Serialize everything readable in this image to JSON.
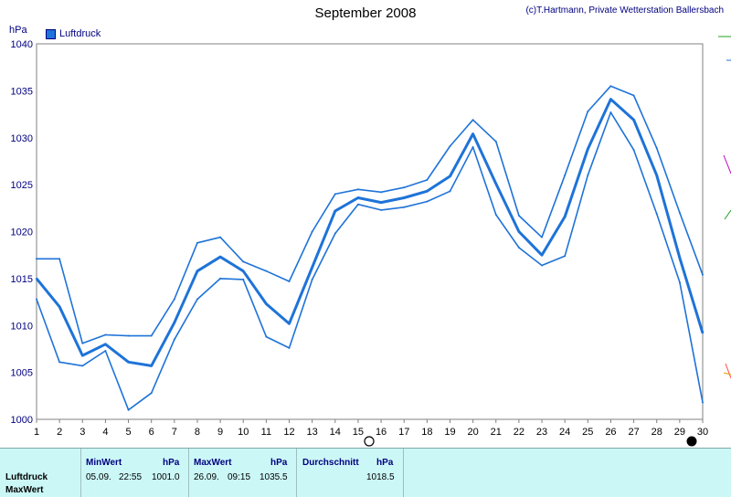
{
  "title": "September 2008",
  "credit": "(c)T.Hartmann, Private Wetterstation Ballersbach",
  "ylabel": "hPa",
  "chart_data": {
    "type": "line",
    "title": "September 2008",
    "ylabel": "hPa",
    "xlabel": "",
    "ylim": [
      1000,
      1040
    ],
    "yticks": [
      1000,
      1005,
      1010,
      1015,
      1020,
      1025,
      1030,
      1035,
      1040
    ],
    "x": [
      1,
      2,
      3,
      4,
      5,
      6,
      7,
      8,
      9,
      10,
      11,
      12,
      13,
      14,
      15,
      16,
      17,
      18,
      19,
      20,
      21,
      22,
      23,
      24,
      25,
      26,
      27,
      28,
      29,
      30
    ],
    "grid": true,
    "legend_position": "top-left",
    "series": [
      {
        "name": "Luftdruck",
        "role": "mean",
        "values": [
          1015,
          1012,
          1006.8,
          1008,
          1006.1,
          1005.7,
          1010.3,
          1015.8,
          1017.3,
          1015.8,
          1012.3,
          1010.2,
          1016.2,
          1022.2,
          1023.6,
          1023.1,
          1023.6,
          1024.3,
          1025.9,
          1030.4,
          1025.1,
          1020,
          1017.5,
          1021.6,
          1028.8,
          1034.1,
          1031.9,
          1026,
          1017.2,
          1009.2
        ]
      },
      {
        "role": "max",
        "values": [
          1017.1,
          1017.1,
          1008.1,
          1009,
          1008.9,
          1008.9,
          1012.8,
          1018.8,
          1019.4,
          1016.8,
          1015.8,
          1014.7,
          1020,
          1024,
          1024.5,
          1024.2,
          1024.7,
          1025.5,
          1029.1,
          1031.9,
          1029.6,
          1021.7,
          1019.4,
          1026,
          1032.8,
          1035.5,
          1034.5,
          1028.9,
          1022,
          1015.4
        ]
      },
      {
        "role": "min",
        "values": [
          1012.8,
          1006.1,
          1005.7,
          1007.3,
          1001,
          1002.8,
          1008.5,
          1012.8,
          1015,
          1014.9,
          1008.8,
          1007.6,
          1014.9,
          1019.8,
          1022.9,
          1022.3,
          1022.6,
          1023.2,
          1024.3,
          1029,
          1021.8,
          1018.3,
          1016.4,
          1017.4,
          1026,
          1032.7,
          1028.7,
          1021.9,
          1014.6,
          1001.8
        ]
      }
    ],
    "color": "#1e73d8"
  },
  "footer": {
    "row1_label": "Luftdruck",
    "row2_label": "MaxWert",
    "min_header": "MinWert",
    "min_unit": "hPa",
    "min_date": "05.09.",
    "min_time": "22:55",
    "min_value": "1001.0",
    "max_header": "MaxWert",
    "max_unit": "hPa",
    "max_date": "26.09.",
    "max_time": "09:15",
    "max_value": "1035.5",
    "avg_header": "Durchschnitt",
    "avg_unit": "hPa",
    "avg_value": "1018.5"
  }
}
